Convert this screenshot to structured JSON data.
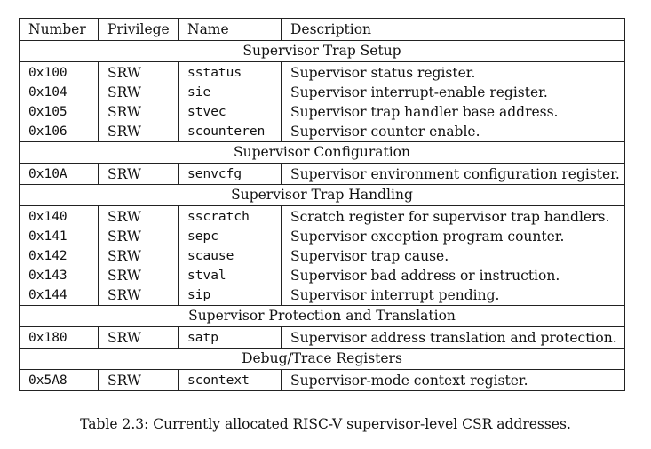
{
  "table": {
    "headers": [
      "Number",
      "Privilege",
      "Name",
      "Description"
    ],
    "sections": [
      {
        "title": "Supervisor Trap Setup",
        "rows": [
          {
            "number": "0x100",
            "privilege": "SRW",
            "name": "sstatus",
            "description": "Supervisor status register."
          },
          {
            "number": "0x104",
            "privilege": "SRW",
            "name": "sie",
            "description": "Supervisor interrupt-enable register."
          },
          {
            "number": "0x105",
            "privilege": "SRW",
            "name": "stvec",
            "description": "Supervisor trap handler base address."
          },
          {
            "number": "0x106",
            "privilege": "SRW",
            "name": "scounteren",
            "description": "Supervisor counter enable."
          }
        ]
      },
      {
        "title": "Supervisor Configuration",
        "rows": [
          {
            "number": "0x10A",
            "privilege": "SRW",
            "name": "senvcfg",
            "description": "Supervisor environment configuration register."
          }
        ]
      },
      {
        "title": "Supervisor Trap Handling",
        "rows": [
          {
            "number": "0x140",
            "privilege": "SRW",
            "name": "sscratch",
            "description": "Scratch register for supervisor trap handlers."
          },
          {
            "number": "0x141",
            "privilege": "SRW",
            "name": "sepc",
            "description": "Supervisor exception program counter."
          },
          {
            "number": "0x142",
            "privilege": "SRW",
            "name": "scause",
            "description": "Supervisor trap cause."
          },
          {
            "number": "0x143",
            "privilege": "SRW",
            "name": "stval",
            "description": "Supervisor bad address or instruction."
          },
          {
            "number": "0x144",
            "privilege": "SRW",
            "name": "sip",
            "description": "Supervisor interrupt pending."
          }
        ]
      },
      {
        "title": "Supervisor Protection and Translation",
        "rows": [
          {
            "number": "0x180",
            "privilege": "SRW",
            "name": "satp",
            "description": "Supervisor address translation and protection."
          }
        ]
      },
      {
        "title": "Debug/Trace Registers",
        "rows": [
          {
            "number": "0x5A8",
            "privilege": "SRW",
            "name": "scontext",
            "description": "Supervisor-mode context register."
          }
        ]
      }
    ]
  },
  "caption": "Table 2.3: Currently allocated RISC-V supervisor-level CSR addresses."
}
